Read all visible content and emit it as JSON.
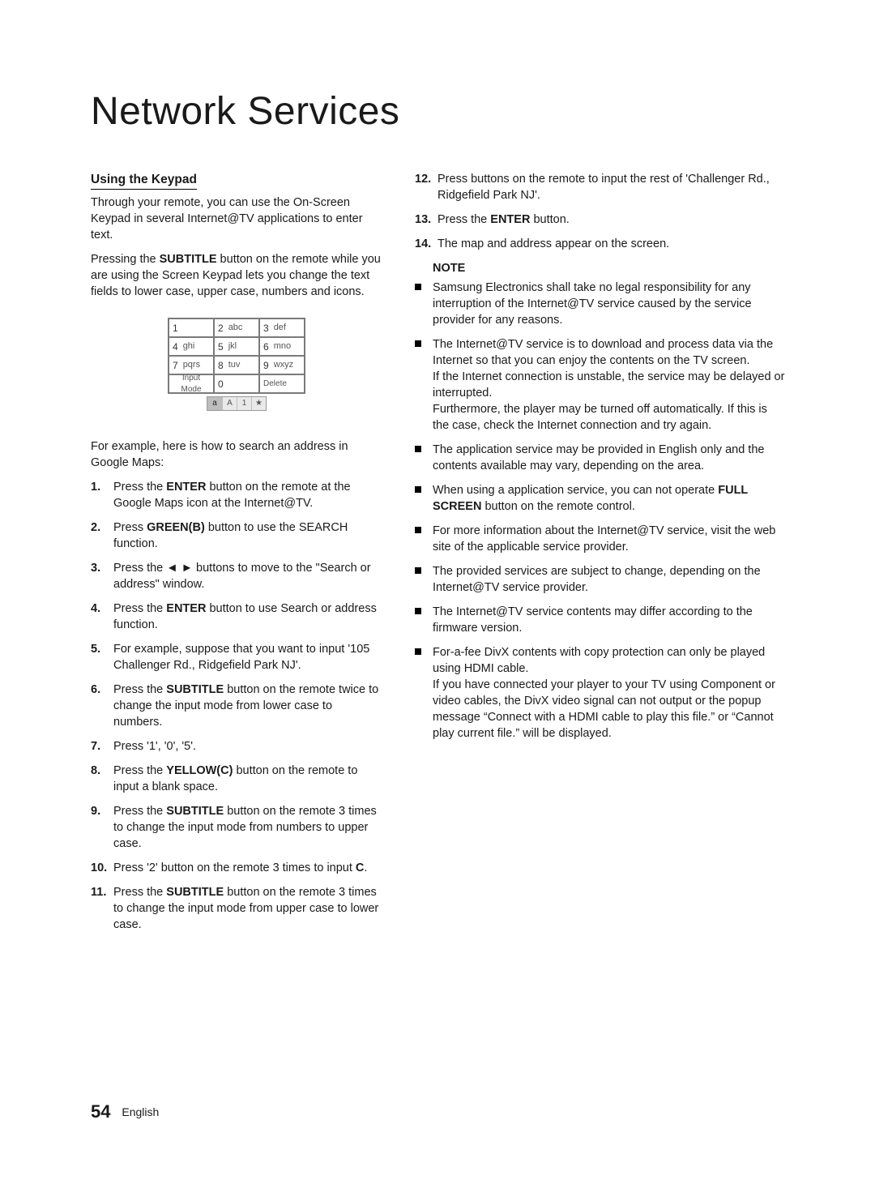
{
  "title": "Network Services",
  "left": {
    "heading": "Using the Keypad",
    "intro1_a": "Through your remote, you can use the On-Screen Keypad in several Internet@TV applications to enter text.",
    "intro2_a": "Pressing the ",
    "intro2_b": "SUBTITLE",
    "intro2_c": " button on the remote while you are using the Screen Keypad lets you change the text fields to lower case, upper case, numbers and icons.",
    "example_lead": "For example, here is how to search an address in Google Maps:",
    "steps": {
      "s1a": "Press the ",
      "s1b": "ENTER",
      "s1c": " button on the remote at the Google Maps icon at the Internet@TV.",
      "s2a": "Press ",
      "s2b": "GREEN(B)",
      "s2c": " button to use the SEARCH function.",
      "s3a": "Press the ◄ ► buttons to move to the \"Search or address\" window.",
      "s4a": "Press the ",
      "s4b": "ENTER",
      "s4c": " button to use Search or address function.",
      "s5": "For example, suppose that you want to input '105 Challenger Rd., Ridgefield Park NJ'.",
      "s6a": "Press the ",
      "s6b": "SUBTITLE",
      "s6c": " button on the remote twice to change the input mode from lower case to numbers.",
      "s7": "Press '1', '0', '5'.",
      "s8a": "Press the ",
      "s8b": "YELLOW(C)",
      "s8c": " button on the remote to input a blank space.",
      "s9a": "Press the ",
      "s9b": "SUBTITLE",
      "s9c": " button on the remote 3 times to change the input mode from numbers to upper case.",
      "s10a": "Press '2' button on the remote 3 times to input ",
      "s10b": "C",
      "s10c": ".",
      "s11a": "Press the ",
      "s11b": "SUBTITLE",
      "s11c": " button on the remote 3 times to change the input mode from upper case to lower case."
    }
  },
  "right": {
    "s12": "Press buttons on the remote to input the rest of 'Challenger Rd., Ridgefield Park NJ'.",
    "s13a": "Press the ",
    "s13b": "ENTER",
    "s13c": " button.",
    "s14": "The map and address appear on the screen.",
    "note_head": "NOTE",
    "notes": {
      "n1": "Samsung Electronics shall take no legal responsibility for any interruption of the Internet@TV service caused by the service provider for any reasons.",
      "n2": "The Internet@TV service is to download and process data via the Internet so that you can enjoy the contents on the TV screen.\nIf the Internet connection is unstable, the service may be delayed or interrupted.\nFurthermore, the player may be turned off automatically. If this is the case, check the Internet connection and try again.",
      "n3": "The application service may be provided in English only and the contents available may vary, depending on the area.",
      "n4a": "When using a application service, you can not operate ",
      "n4b": "FULL SCREEN",
      "n4c": " button on the remote control.",
      "n5": "For more information about the Internet@TV service, visit the web site of the applicable service provider.",
      "n6": "The provided services are subject to change, depending on the Internet@TV service provider.",
      "n7": "The Internet@TV service contents may differ according to the firmware version.",
      "n8": "For-a-fee DivX contents with copy protection can only be played using HDMI cable.\nIf you have connected your player to your TV using Component or video cables, the DivX video signal can not output or the popup message “Connect with a HDMI cable to play this file.” or “Cannot play current file.” will be displayed."
    }
  },
  "keypad": {
    "cells": {
      "c1n": "1",
      "c1t": "",
      "c2n": "2",
      "c2t": "abc",
      "c3n": "3",
      "c3t": "def",
      "c4n": "4",
      "c4t": "ghi",
      "c5n": "5",
      "c5t": "jkl",
      "c6n": "6",
      "c6t": "mno",
      "c7n": "7",
      "c7t": "pqrs",
      "c8n": "8",
      "c8t": "tuv",
      "c9n": "9",
      "c9t": "wxyz",
      "im": "Input Mode",
      "c0n": "0",
      "del": "Delete"
    },
    "modes": {
      "m1": "a",
      "m2": "A",
      "m3": "1",
      "m4": "★"
    }
  },
  "footer": {
    "page": "54",
    "lang": "English"
  }
}
